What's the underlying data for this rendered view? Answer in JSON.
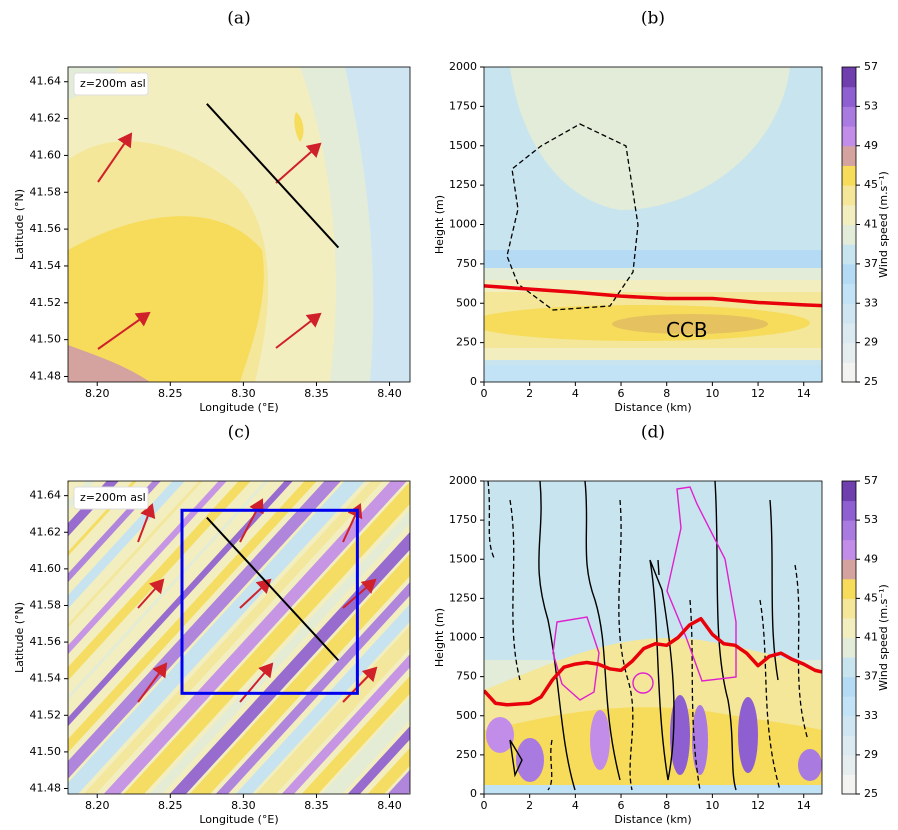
{
  "chart_data": [
    {
      "type": "map",
      "panel_label": "(a)",
      "annotation": "z=200m asl",
      "xlabel": "Longitude (°E)",
      "ylabel": "Latitude (°N)",
      "xlim": [
        8.18,
        8.414
      ],
      "ylim": [
        41.477,
        41.648
      ],
      "xticks": [
        {
          "value": 8.2,
          "label": "8.20"
        },
        8.25,
        {
          "value": 8.3,
          "label": "8.30"
        },
        8.35,
        {
          "value": 8.4,
          "label": "8.40"
        }
      ],
      "yticks": [
        41.48,
        {
          "value": 41.5,
          "label": "41.50"
        },
        41.52,
        41.54,
        41.56,
        41.58,
        {
          "value": 41.6,
          "label": "41.60"
        },
        41.62,
        41.64
      ],
      "section_line": {
        "lon": [
          8.275,
          8.365
        ],
        "lat": [
          41.628,
          41.55
        ],
        "color": "#000000"
      }
    },
    {
      "type": "section",
      "panel_label": "(b)",
      "annotation": "CCB",
      "xlabel": "Distance (km)",
      "ylabel": "Height (m)",
      "xlim": [
        0,
        14.8
      ],
      "ylim": [
        0,
        2000
      ],
      "xticks": [
        0,
        2,
        4,
        6,
        8,
        10,
        12,
        14
      ],
      "yticks": [
        0,
        250,
        500,
        750,
        1000,
        1250,
        1500,
        1750,
        2000
      ],
      "line": {
        "x": [
          0,
          2,
          4,
          6,
          8,
          10,
          12,
          14,
          14.8
        ],
        "values": [
          610,
          590,
          570,
          545,
          530,
          530,
          505,
          490,
          485
        ],
        "color": "#e8000b"
      },
      "colorbar": {
        "label": "Wind speed (m.s⁻¹)",
        "lim": [
          25,
          57
        ],
        "ticks": [
          25,
          29,
          33,
          37,
          41,
          45,
          49,
          53,
          57
        ],
        "colors": [
          "#f3f3f1",
          "#e6edef",
          "#daeaf0",
          "#cfe6f2",
          "#c2e2f5",
          "#b4dbf3",
          "#c8e4ee",
          "#e3ecd8",
          "#f2eec0",
          "#f4e79a",
          "#f6dc5a",
          "#d4a3a0",
          "#c28de8",
          "#a97ae0",
          "#8e5fd0",
          "#6f3fae"
        ]
      }
    },
    {
      "type": "map",
      "panel_label": "(c)",
      "annotation": "z=200m asl",
      "xlabel": "Longitude (°E)",
      "ylabel": "Latitude (°N)",
      "xlim": [
        8.18,
        8.414
      ],
      "ylim": [
        41.477,
        41.648
      ],
      "xticks": [
        {
          "value": 8.2,
          "label": "8.20"
        },
        8.25,
        {
          "value": 8.3,
          "label": "8.30"
        },
        8.35,
        {
          "value": 8.4,
          "label": "8.40"
        }
      ],
      "yticks": [
        41.48,
        {
          "value": 41.5,
          "label": "41.50"
        },
        41.52,
        41.54,
        41.56,
        41.58,
        {
          "value": 41.6,
          "label": "41.60"
        },
        41.62,
        41.64
      ],
      "section_line": {
        "lon": [
          8.275,
          8.365
        ],
        "lat": [
          41.628,
          41.55
        ],
        "color": "#000000"
      },
      "box": {
        "lon": [
          8.258,
          8.378
        ],
        "lat": [
          41.532,
          41.632
        ],
        "color": "#0000ee"
      }
    },
    {
      "type": "section",
      "panel_label": "(d)",
      "xlabel": "Distance (km)",
      "ylabel": "Height (m)",
      "xlim": [
        0,
        14.8
      ],
      "ylim": [
        0,
        2000
      ],
      "xticks": [
        0,
        2,
        4,
        6,
        8,
        10,
        12,
        14
      ],
      "yticks": [
        0,
        250,
        500,
        750,
        1000,
        1250,
        1500,
        1750,
        2000
      ],
      "line": {
        "x": [
          0,
          0.5,
          1,
          1.5,
          2,
          2.5,
          3,
          3.5,
          4,
          4.5,
          5,
          5.5,
          6,
          6.5,
          7,
          7.5,
          8,
          8.5,
          9,
          9.5,
          10,
          10.5,
          11,
          11.5,
          12,
          12.5,
          13,
          13.5,
          14,
          14.5,
          14.8
        ],
        "values": [
          660,
          580,
          570,
          575,
          580,
          620,
          730,
          810,
          830,
          840,
          830,
          800,
          790,
          850,
          930,
          960,
          950,
          1000,
          1080,
          1120,
          1020,
          960,
          950,
          900,
          820,
          880,
          900,
          860,
          830,
          790,
          780
        ],
        "color": "#e8000b"
      },
      "colorbar": {
        "label": "Wind speed (m.s⁻¹)",
        "lim": [
          25,
          57
        ],
        "ticks": [
          25,
          29,
          33,
          37,
          41,
          45,
          49,
          53,
          57
        ],
        "colors": [
          "#f3f3f1",
          "#e6edef",
          "#daeaf0",
          "#cfe6f2",
          "#c2e2f5",
          "#b4dbf3",
          "#c8e4ee",
          "#e3ecd8",
          "#f2eec0",
          "#f4e79a",
          "#f6dc5a",
          "#d4a3a0",
          "#c28de8",
          "#a97ae0",
          "#8e5fd0",
          "#6f3fae"
        ]
      }
    }
  ]
}
